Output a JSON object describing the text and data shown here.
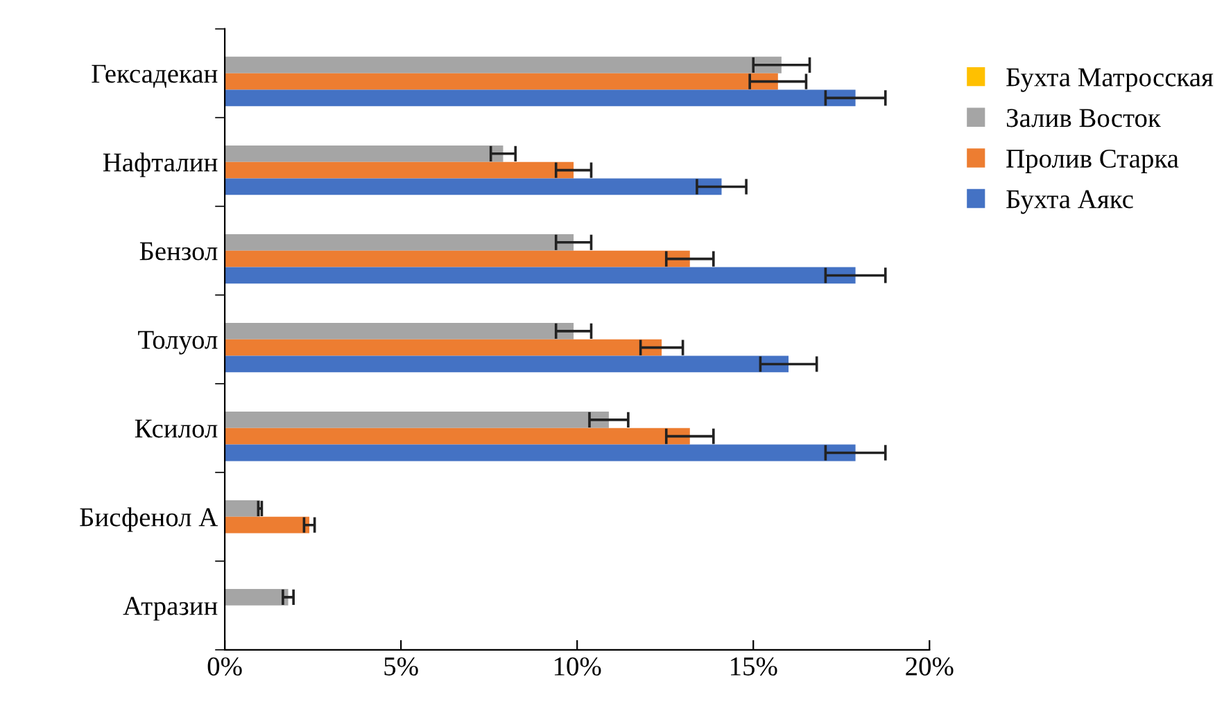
{
  "chart_data": {
    "type": "bar",
    "orientation": "horizontal",
    "categories": [
      "Гексадекан",
      "Нафталин",
      "Бензол",
      "Толуол",
      "Ксилол",
      "Бисфенол А",
      "Атразин"
    ],
    "series": [
      {
        "name": "Бухта Матросская",
        "color": "#ffc000",
        "values": [
          null,
          null,
          null,
          null,
          null,
          null,
          null
        ]
      },
      {
        "name": "Залив Восток",
        "color": "#a5a5a5",
        "values": [
          15.8,
          7.9,
          9.9,
          9.9,
          10.9,
          1.0,
          1.8
        ],
        "errors": [
          0.8,
          0.35,
          0.5,
          0.5,
          0.55,
          0.05,
          0.15
        ]
      },
      {
        "name": "Пролив Старка",
        "color": "#ed7d31",
        "values": [
          15.7,
          9.9,
          13.2,
          12.4,
          13.2,
          2.4,
          null
        ],
        "errors": [
          0.8,
          0.5,
          0.67,
          0.6,
          0.67,
          0.15,
          null
        ]
      },
      {
        "name": "Бухта Аякс",
        "color": "#4472c4",
        "values": [
          17.9,
          14.1,
          17.9,
          16.0,
          17.9,
          null,
          null
        ],
        "errors": [
          0.85,
          0.7,
          0.85,
          0.8,
          0.85,
          null,
          null
        ]
      }
    ],
    "xlim": [
      0,
      20
    ],
    "xticks": [
      {
        "value": 0,
        "label": "0%"
      },
      {
        "value": 5,
        "label": "5%"
      },
      {
        "value": 10,
        "label": "10%"
      },
      {
        "value": 15,
        "label": "15%"
      },
      {
        "value": 20,
        "label": "20%"
      }
    ],
    "grid": false,
    "legend": "right"
  }
}
